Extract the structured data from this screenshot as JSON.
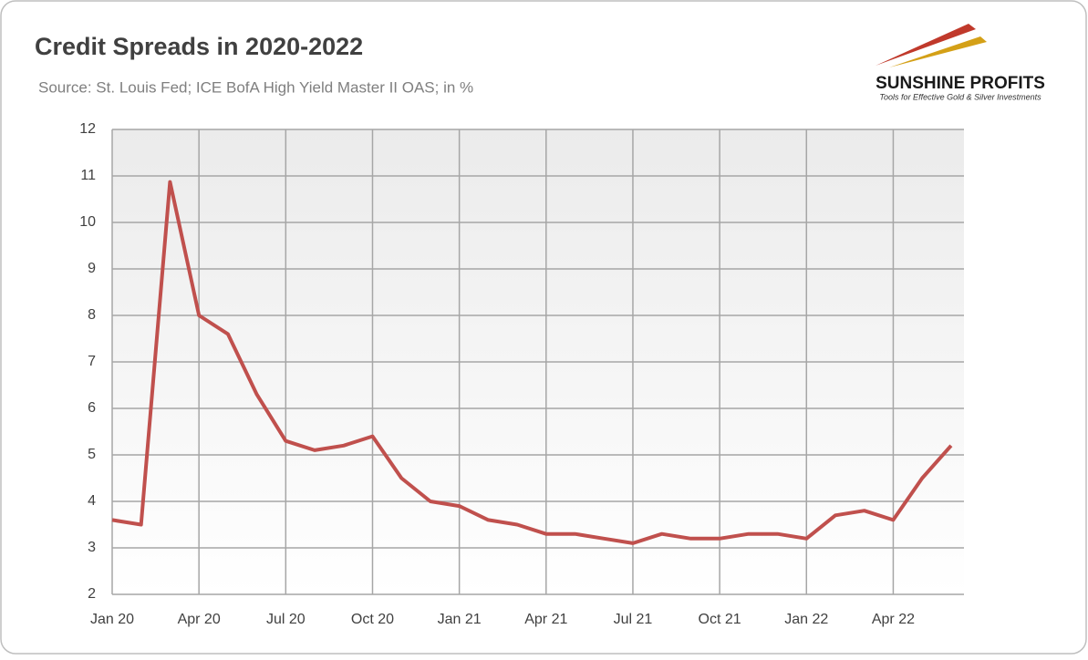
{
  "chart_data": {
    "type": "line",
    "title": "Credit Spreads in 2020-2022",
    "subtitle": "Source: St. Louis Fed; ICE BofA High Yield Master II OAS; in %",
    "categories": [
      "Jan 20",
      null,
      null,
      "Apr 20",
      null,
      null,
      "Jul 20",
      null,
      null,
      "Oct 20",
      null,
      null,
      "Jan 21",
      null,
      null,
      "Apr 21",
      null,
      null,
      "Jul 21",
      null,
      null,
      "Oct 21",
      null,
      null,
      "Jan 22",
      null,
      null,
      "Apr 22",
      null,
      null
    ],
    "series": [
      {
        "name": "ICE BofA High Yield Master II OAS",
        "color": "#c0504d",
        "values": [
          3.6,
          3.5,
          10.87,
          8.0,
          7.6,
          6.3,
          5.3,
          5.1,
          5.2,
          5.4,
          4.5,
          4.0,
          3.9,
          3.6,
          3.5,
          3.3,
          3.3,
          3.2,
          3.1,
          3.3,
          3.2,
          3.2,
          3.3,
          3.3,
          3.2,
          3.7,
          3.8,
          3.6,
          4.5,
          5.2
        ]
      }
    ],
    "ylim": [
      2,
      12
    ],
    "yticks": [
      2,
      3,
      4,
      5,
      6,
      7,
      8,
      9,
      10,
      11,
      12
    ],
    "grid": true
  },
  "logo": {
    "name": "SUNSHINE PROFITS",
    "tagline": "Tools for Effective Gold & Silver Investments"
  }
}
